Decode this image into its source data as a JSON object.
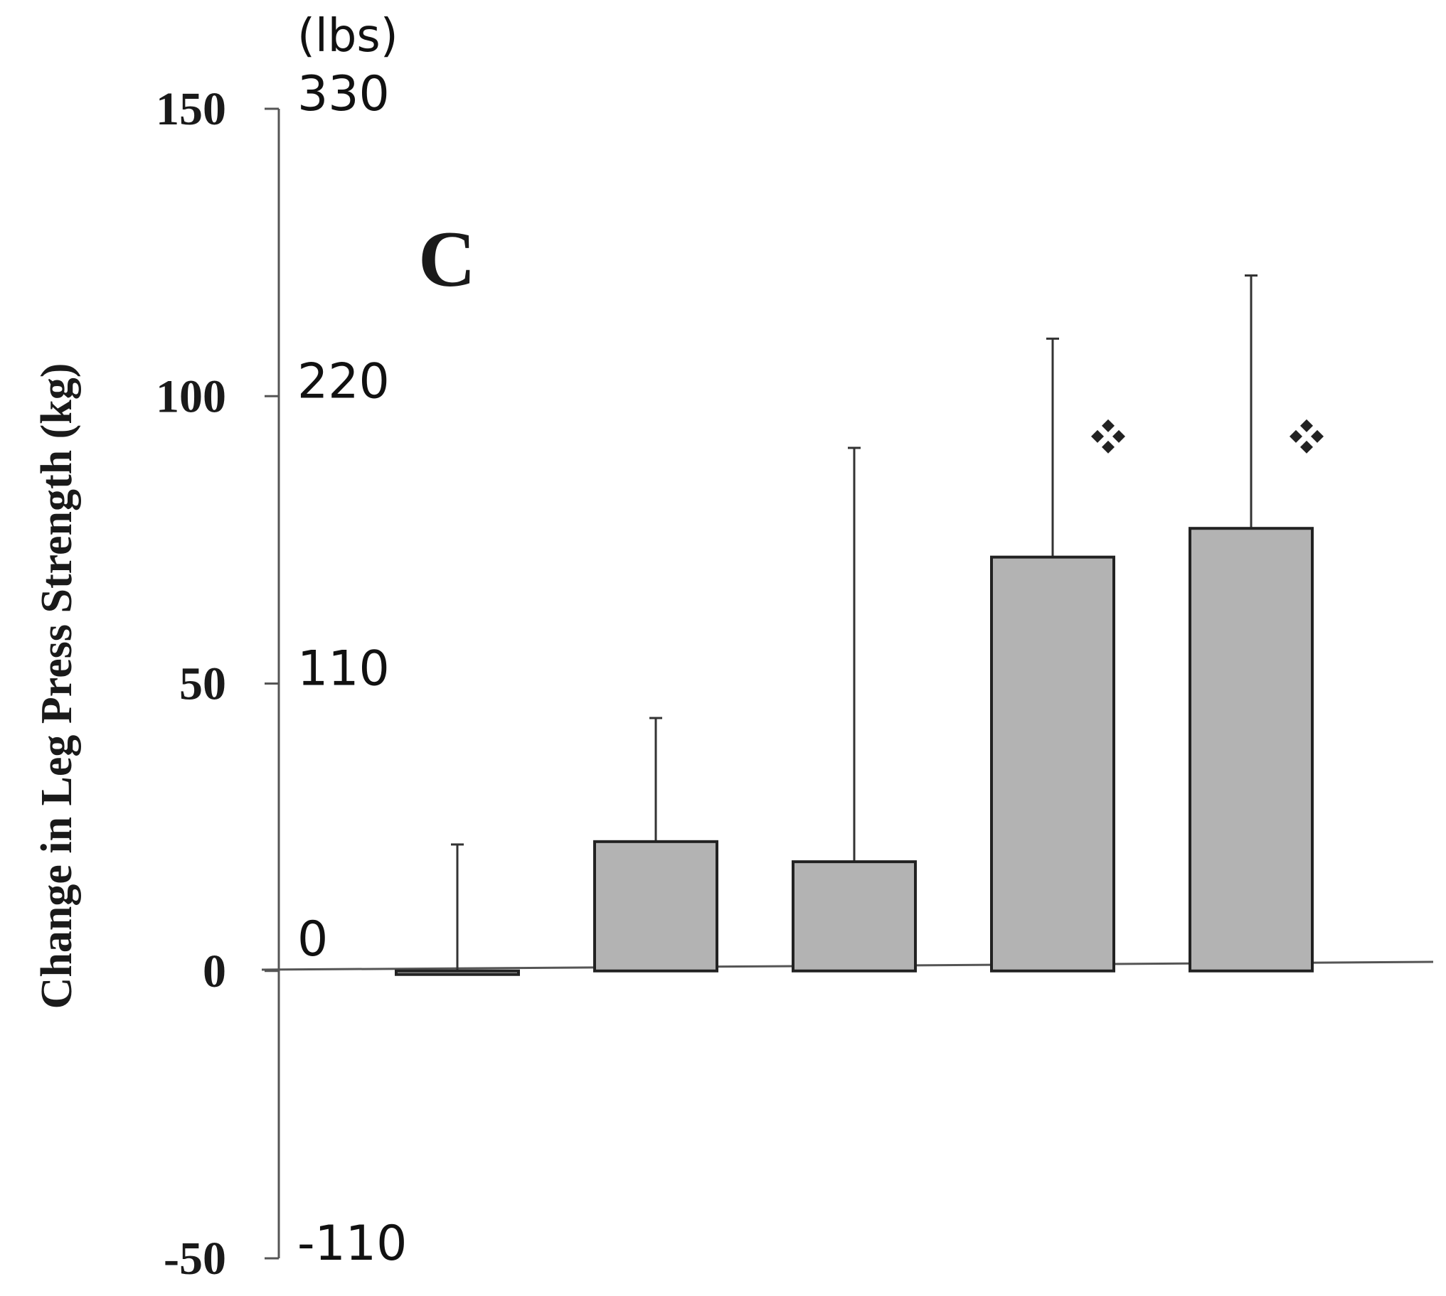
{
  "chart_data": {
    "type": "bar",
    "panel_label": "C",
    "ylabel": "Change in Leg Press Strength (kg)",
    "ylim": [
      -50,
      150
    ],
    "grid": false,
    "colors": {
      "bar_fill": "#b3b3b3",
      "bar_edge": "#222222",
      "axis": "#555555"
    },
    "y_ticks_kg": [
      {
        "value": 150,
        "label": "150"
      },
      {
        "value": 100,
        "label": "100"
      },
      {
        "value": 50,
        "label": "50"
      },
      {
        "value": 0,
        "label": "0"
      },
      {
        "value": -50,
        "label": "-50"
      }
    ],
    "secondary_axis": {
      "unit_label": "(lbs)",
      "ticks": [
        {
          "value": 150,
          "label": "330"
        },
        {
          "value": 100,
          "label": "220"
        },
        {
          "value": 50,
          "label": "110"
        },
        {
          "value": 0,
          "label": "0"
        },
        {
          "value": -50,
          "label": "-110"
        }
      ]
    },
    "series": [
      {
        "values": [
          -0.5,
          22.5,
          19,
          72,
          77
        ],
        "error_upper": [
          22,
          44,
          91,
          110,
          121
        ],
        "significant": [
          false,
          false,
          false,
          true,
          true
        ],
        "marker_icon": "four-diamond-icon"
      }
    ]
  }
}
